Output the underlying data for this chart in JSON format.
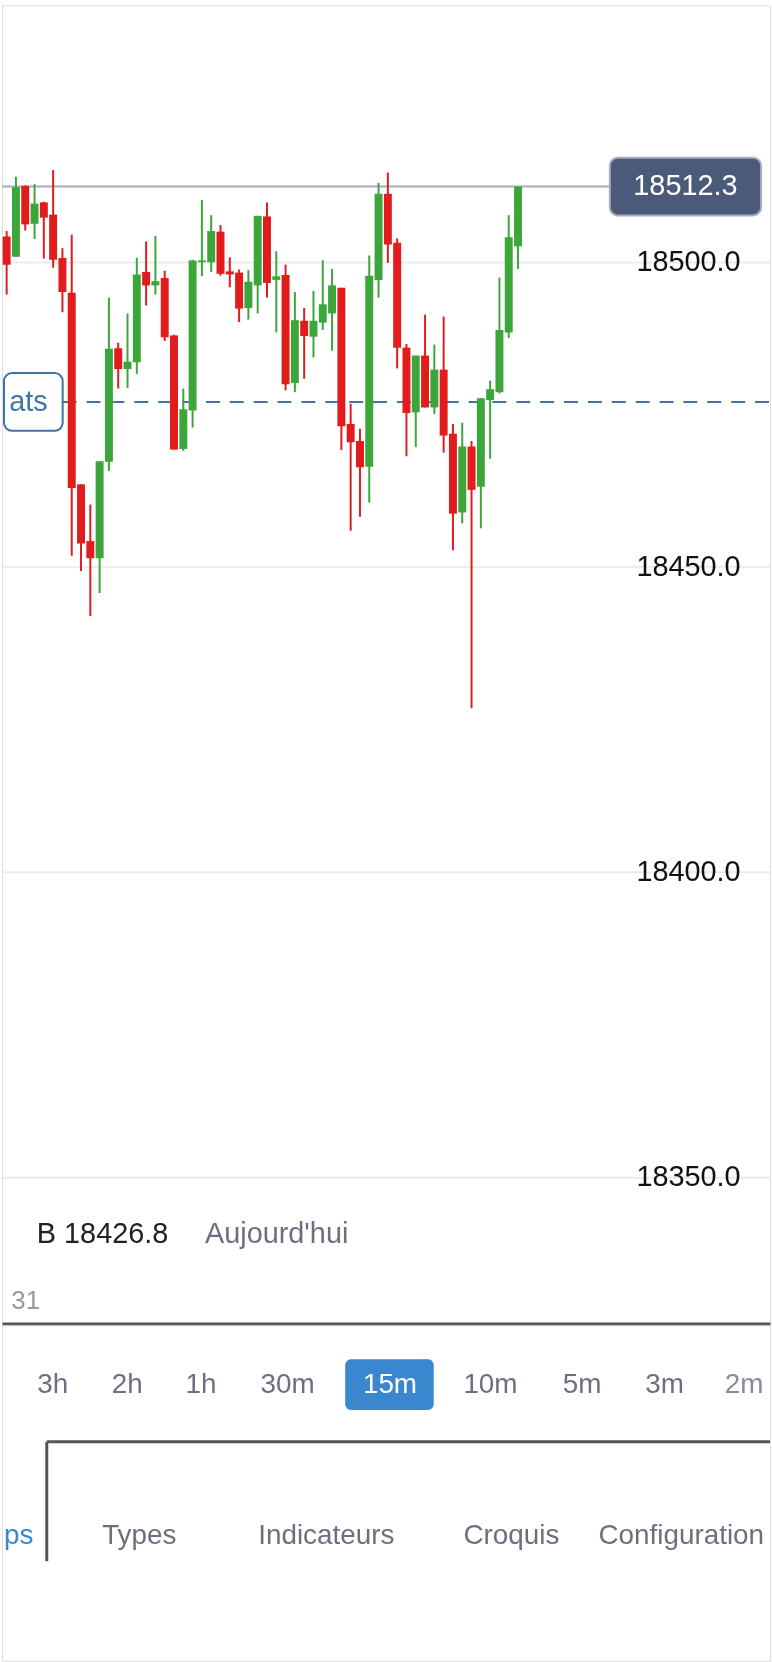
{
  "chart_data": {
    "type": "candlestick",
    "categories": [
      null,
      null,
      "31",
      null,
      null,
      null,
      null,
      null,
      null,
      null,
      null,
      null,
      null,
      null,
      null,
      null,
      null,
      null,
      null,
      null,
      null,
      null,
      null,
      null,
      null,
      null,
      null,
      null,
      null,
      null,
      null,
      null,
      null,
      null,
      null,
      null,
      null,
      null,
      null,
      null,
      null,
      null,
      null,
      null,
      null,
      null,
      null,
      null,
      null,
      null,
      null,
      null,
      null,
      null,
      null,
      null
    ],
    "ohlc": [
      [
        18504.1,
        18505.0,
        18494.6,
        18499.5
      ],
      [
        18500.8,
        18513.9,
        18500.8,
        18512.2
      ],
      [
        18512.4,
        18512.5,
        18505.1,
        18506.1
      ],
      [
        18506.2,
        18512.7,
        18503.7,
        18509.5
      ],
      [
        18509.7,
        18509.8,
        18500.5,
        18507.2
      ],
      [
        18507.7,
        18515.0,
        18499.0,
        18500.3
      ],
      [
        18500.6,
        18502.2,
        18491.7,
        18495.0
      ],
      [
        18494.9,
        18504.4,
        18451.8,
        18462.9
      ],
      [
        18463.5,
        18463.5,
        18449.3,
        18453.8
      ],
      [
        18454.2,
        18460.2,
        18441.9,
        18451.4
      ],
      [
        18451.4,
        18467.3,
        18445.7,
        18467.3
      ],
      [
        18467.2,
        18494.1,
        18465.7,
        18485.7
      ],
      [
        18485.8,
        18486.7,
        18479.2,
        18482.4
      ],
      [
        18482.4,
        18491.5,
        18479.3,
        18483.6
      ],
      [
        18483.5,
        18500.6,
        18481.6,
        18497.9
      ],
      [
        18498.3,
        18503.3,
        18492.8,
        18496.1
      ],
      [
        18496.1,
        18504.2,
        18494.6,
        18496.8
      ],
      [
        18497.3,
        18498.5,
        18487.0,
        18487.6
      ],
      [
        18487.9,
        18488.0,
        18469.2,
        18469.2
      ],
      [
        18469.3,
        18479.2,
        18469.0,
        18475.8
      ],
      [
        18475.6,
        18500.3,
        18472.8,
        18500.2
      ],
      [
        18499.9,
        18510.1,
        18497.6,
        18500.2
      ],
      [
        18499.9,
        18507.6,
        18498.3,
        18505.0
      ],
      [
        18504.9,
        18506.0,
        18497.7,
        18498.0
      ],
      [
        18498.4,
        18500.7,
        18495.8,
        18497.9
      ],
      [
        18498.2,
        18498.7,
        18490.1,
        18492.3
      ],
      [
        18492.4,
        18498.6,
        18490.5,
        18496.7
      ],
      [
        18496.1,
        18507.5,
        18491.5,
        18507.5
      ],
      [
        18507.4,
        18509.7,
        18494.1,
        18496.5
      ],
      [
        18497.0,
        18501.7,
        18488.4,
        18497.6
      ],
      [
        18497.8,
        18499.5,
        18478.9,
        18479.9
      ],
      [
        18480.1,
        18495.0,
        18478.6,
        18490.4
      ],
      [
        18490.3,
        18492.4,
        18480.8,
        18487.8
      ],
      [
        18487.7,
        18495.2,
        18484.3,
        18490.3
      ],
      [
        18490.0,
        18500.2,
        18488.8,
        18493.0
      ],
      [
        18491.5,
        18498.8,
        18485.4,
        18496.1
      ],
      [
        18495.7,
        18495.7,
        18469.1,
        18473.0
      ],
      [
        18473.4,
        18476.7,
        18455.9,
        18470.4
      ],
      [
        18470.6,
        18472.6,
        18458.2,
        18466.3
      ],
      [
        18466.4,
        18501.0,
        18460.5,
        18497.7
      ],
      [
        18497.0,
        18512.9,
        18494.1,
        18511.1
      ],
      [
        18511.1,
        18514.6,
        18499.8,
        18502.8
      ],
      [
        18503.1,
        18503.8,
        18482.5,
        18485.9
      ],
      [
        18485.9,
        18486.5,
        18468.1,
        18475.2
      ],
      [
        18475.3,
        18484.6,
        18469.6,
        18484.6
      ],
      [
        18484.6,
        18491.3,
        18476.1,
        18476.1
      ],
      [
        18476.1,
        18486.4,
        18475.0,
        18482.3
      ],
      [
        18482.3,
        18491.0,
        18468.7,
        18471.5
      ],
      [
        18471.8,
        18473.4,
        18452.7,
        18458.7
      ],
      [
        18458.9,
        18473.6,
        18457.1,
        18469.7
      ],
      [
        18469.7,
        18470.6,
        18426.8,
        18462.6
      ],
      [
        18463.1,
        18477.6,
        18456.3,
        18477.6
      ],
      [
        18477.3,
        18480.5,
        18467.7,
        18479.1
      ],
      [
        18478.6,
        18497.4,
        18478.4,
        18488.8
      ],
      [
        18488.4,
        18507.6,
        18487.5,
        18504.0
      ],
      [
        18502.5,
        18512.3,
        18498.8,
        18512.3
      ]
    ],
    "colors": [
      "#e21c1c",
      "#3da63a",
      "#e21c1c",
      "#3da63a",
      "#e21c1c",
      "#e21c1c",
      "#e21c1c",
      "#e21c1c",
      "#e21c1c",
      "#e21c1c",
      "#3da63a",
      "#3da63a",
      "#e21c1c",
      "#3da63a",
      "#3da63a",
      "#e21c1c",
      "#3da63a",
      "#e21c1c",
      "#e21c1c",
      "#3da63a",
      "#3da63a",
      "#3da63a",
      "#3da63a",
      "#e21c1c",
      "#e21c1c",
      "#e21c1c",
      "#3da63a",
      "#3da63a",
      "#e21c1c",
      "#3da63a",
      "#e21c1c",
      "#3da63a",
      "#e21c1c",
      "#3da63a",
      "#3da63a",
      "#3da63a",
      "#e21c1c",
      "#e21c1c",
      "#e21c1c",
      "#3da63a",
      "#3da63a",
      "#e21c1c",
      "#e21c1c",
      "#e21c1c",
      "#3da63a",
      "#e21c1c",
      "#3da63a",
      "#e21c1c",
      "#e21c1c",
      "#3da63a",
      "#e21c1c",
      "#3da63a",
      "#3da63a",
      "#3da63a",
      "#3da63a",
      "#3da63a"
    ],
    "ylim": [
      18326,
      18542
    ],
    "yticks": [
      {
        "value": 18350,
        "label": "18350.0"
      },
      {
        "value": 18400,
        "label": "18400.0"
      },
      {
        "value": 18450,
        "label": "18450.0"
      },
      {
        "value": 18500,
        "label": "18500.0"
      }
    ],
    "grid": "y",
    "ref_lines": [
      {
        "axis": "y",
        "value": 18512.3,
        "label": "18512.3",
        "color": "#a3adbd",
        "line_style": "solid"
      },
      {
        "axis": "y",
        "value": 18477,
        "label": "ats",
        "color": "#3f74a8",
        "line_style": "dashed"
      }
    ],
    "annotations": [
      "B 18426.8",
      "Aujourd'hui",
      "3h",
      "2h",
      "1h",
      "30m",
      "15m",
      "10m",
      "5m",
      "3m",
      "2m",
      "ps",
      "Types",
      "Indicateurs",
      "Croquis",
      "Configuration"
    ]
  }
}
